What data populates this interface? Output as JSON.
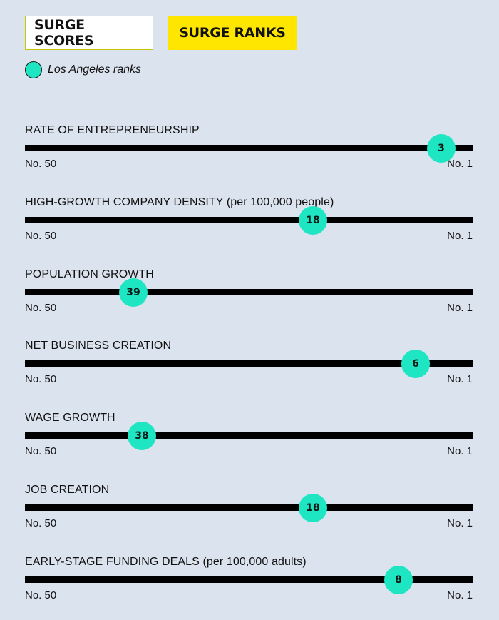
{
  "tabs": {
    "scores_label": "SURGE SCORES",
    "ranks_label": "SURGE RANKS"
  },
  "legend": {
    "label": "Los Angeles ranks"
  },
  "scale": {
    "worst_label": "No. 50",
    "best_label": "No. 1",
    "worst_rank": 50,
    "best_rank": 1
  },
  "metrics": [
    {
      "title": "RATE OF ENTREPRENEURSHIP",
      "rank": 3
    },
    {
      "title": "HIGH-GROWTH COMPANY DENSITY (per 100,000 people)",
      "rank": 18
    },
    {
      "title": "POPULATION GROWTH",
      "rank": 39
    },
    {
      "title": "NET BUSINESS CREATION",
      "rank": 6
    },
    {
      "title": "WAGE GROWTH",
      "rank": 38
    },
    {
      "title": "JOB CREATION",
      "rank": 18
    },
    {
      "title": "EARLY-STAGE FUNDING DEALS (per 100,000 adults)",
      "rank": 8
    }
  ],
  "colors": {
    "marker": "#1ee6c2",
    "background": "#dbe3ee",
    "active_tab": "#ffe600"
  }
}
